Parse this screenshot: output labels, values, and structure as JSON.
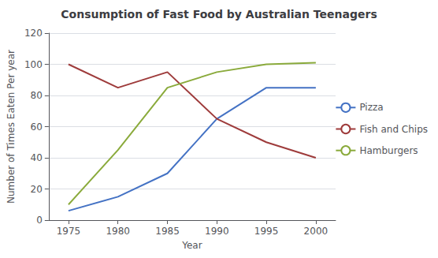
{
  "chart_data": {
    "type": "line",
    "title": "Consumption of Fast Food by Australian Teenagers",
    "xlabel": "Year",
    "ylabel": "Number of Times Eaten Per year",
    "x": [
      1975,
      1980,
      1985,
      1990,
      1995,
      2000
    ],
    "series": [
      {
        "name": "Pizza",
        "color": "#4472c4",
        "values": [
          6,
          15,
          30,
          65,
          85,
          85
        ]
      },
      {
        "name": "Fish and Chips",
        "color": "#9e3b3b",
        "values": [
          100,
          85,
          95,
          65,
          50,
          40
        ]
      },
      {
        "name": "Hamburgers",
        "color": "#8aaa3b",
        "values": [
          10,
          45,
          85,
          95,
          100,
          101
        ]
      }
    ],
    "xlim": [
      1973,
      2002
    ],
    "xticks": [
      1975,
      1980,
      1985,
      1990,
      1995,
      2000
    ],
    "ylim": [
      0,
      120
    ],
    "yticks": [
      0,
      20,
      40,
      60,
      80,
      100,
      120
    ],
    "grid": true,
    "legend": "right"
  }
}
